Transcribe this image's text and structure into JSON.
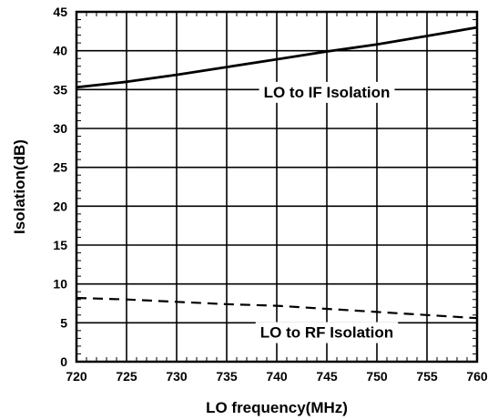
{
  "chart_data": {
    "type": "line",
    "xlabel": "LO frequency(MHz)",
    "ylabel": "Isolation(dB)",
    "xlim": [
      720,
      760
    ],
    "ylim": [
      0,
      45
    ],
    "xticks": [
      "720",
      "725",
      "730",
      "735",
      "740",
      "745",
      "750",
      "755",
      "760"
    ],
    "yticks": [
      "0",
      "5",
      "10",
      "15",
      "20",
      "25",
      "30",
      "35",
      "40",
      "45"
    ],
    "grid": true,
    "series": [
      {
        "style": "solid",
        "x": [
          720,
          725,
          730,
          735,
          740,
          745,
          750,
          755,
          760
        ],
        "values": [
          35.3,
          36.0,
          36.9,
          37.9,
          38.9,
          39.9,
          40.8,
          41.9,
          43.0
        ]
      },
      {
        "style": "dashed",
        "x": [
          720,
          725,
          730,
          735,
          740,
          745,
          750,
          755,
          760
        ],
        "values": [
          8.2,
          8.0,
          7.7,
          7.4,
          7.2,
          6.8,
          6.4,
          6.0,
          5.6
        ]
      }
    ],
    "annotations": [
      {
        "text": "LO to IF Isolation",
        "x": 745,
        "y": 34.7
      },
      {
        "text": "LO to RF Isolation",
        "x": 745,
        "y": 3.8
      }
    ]
  }
}
